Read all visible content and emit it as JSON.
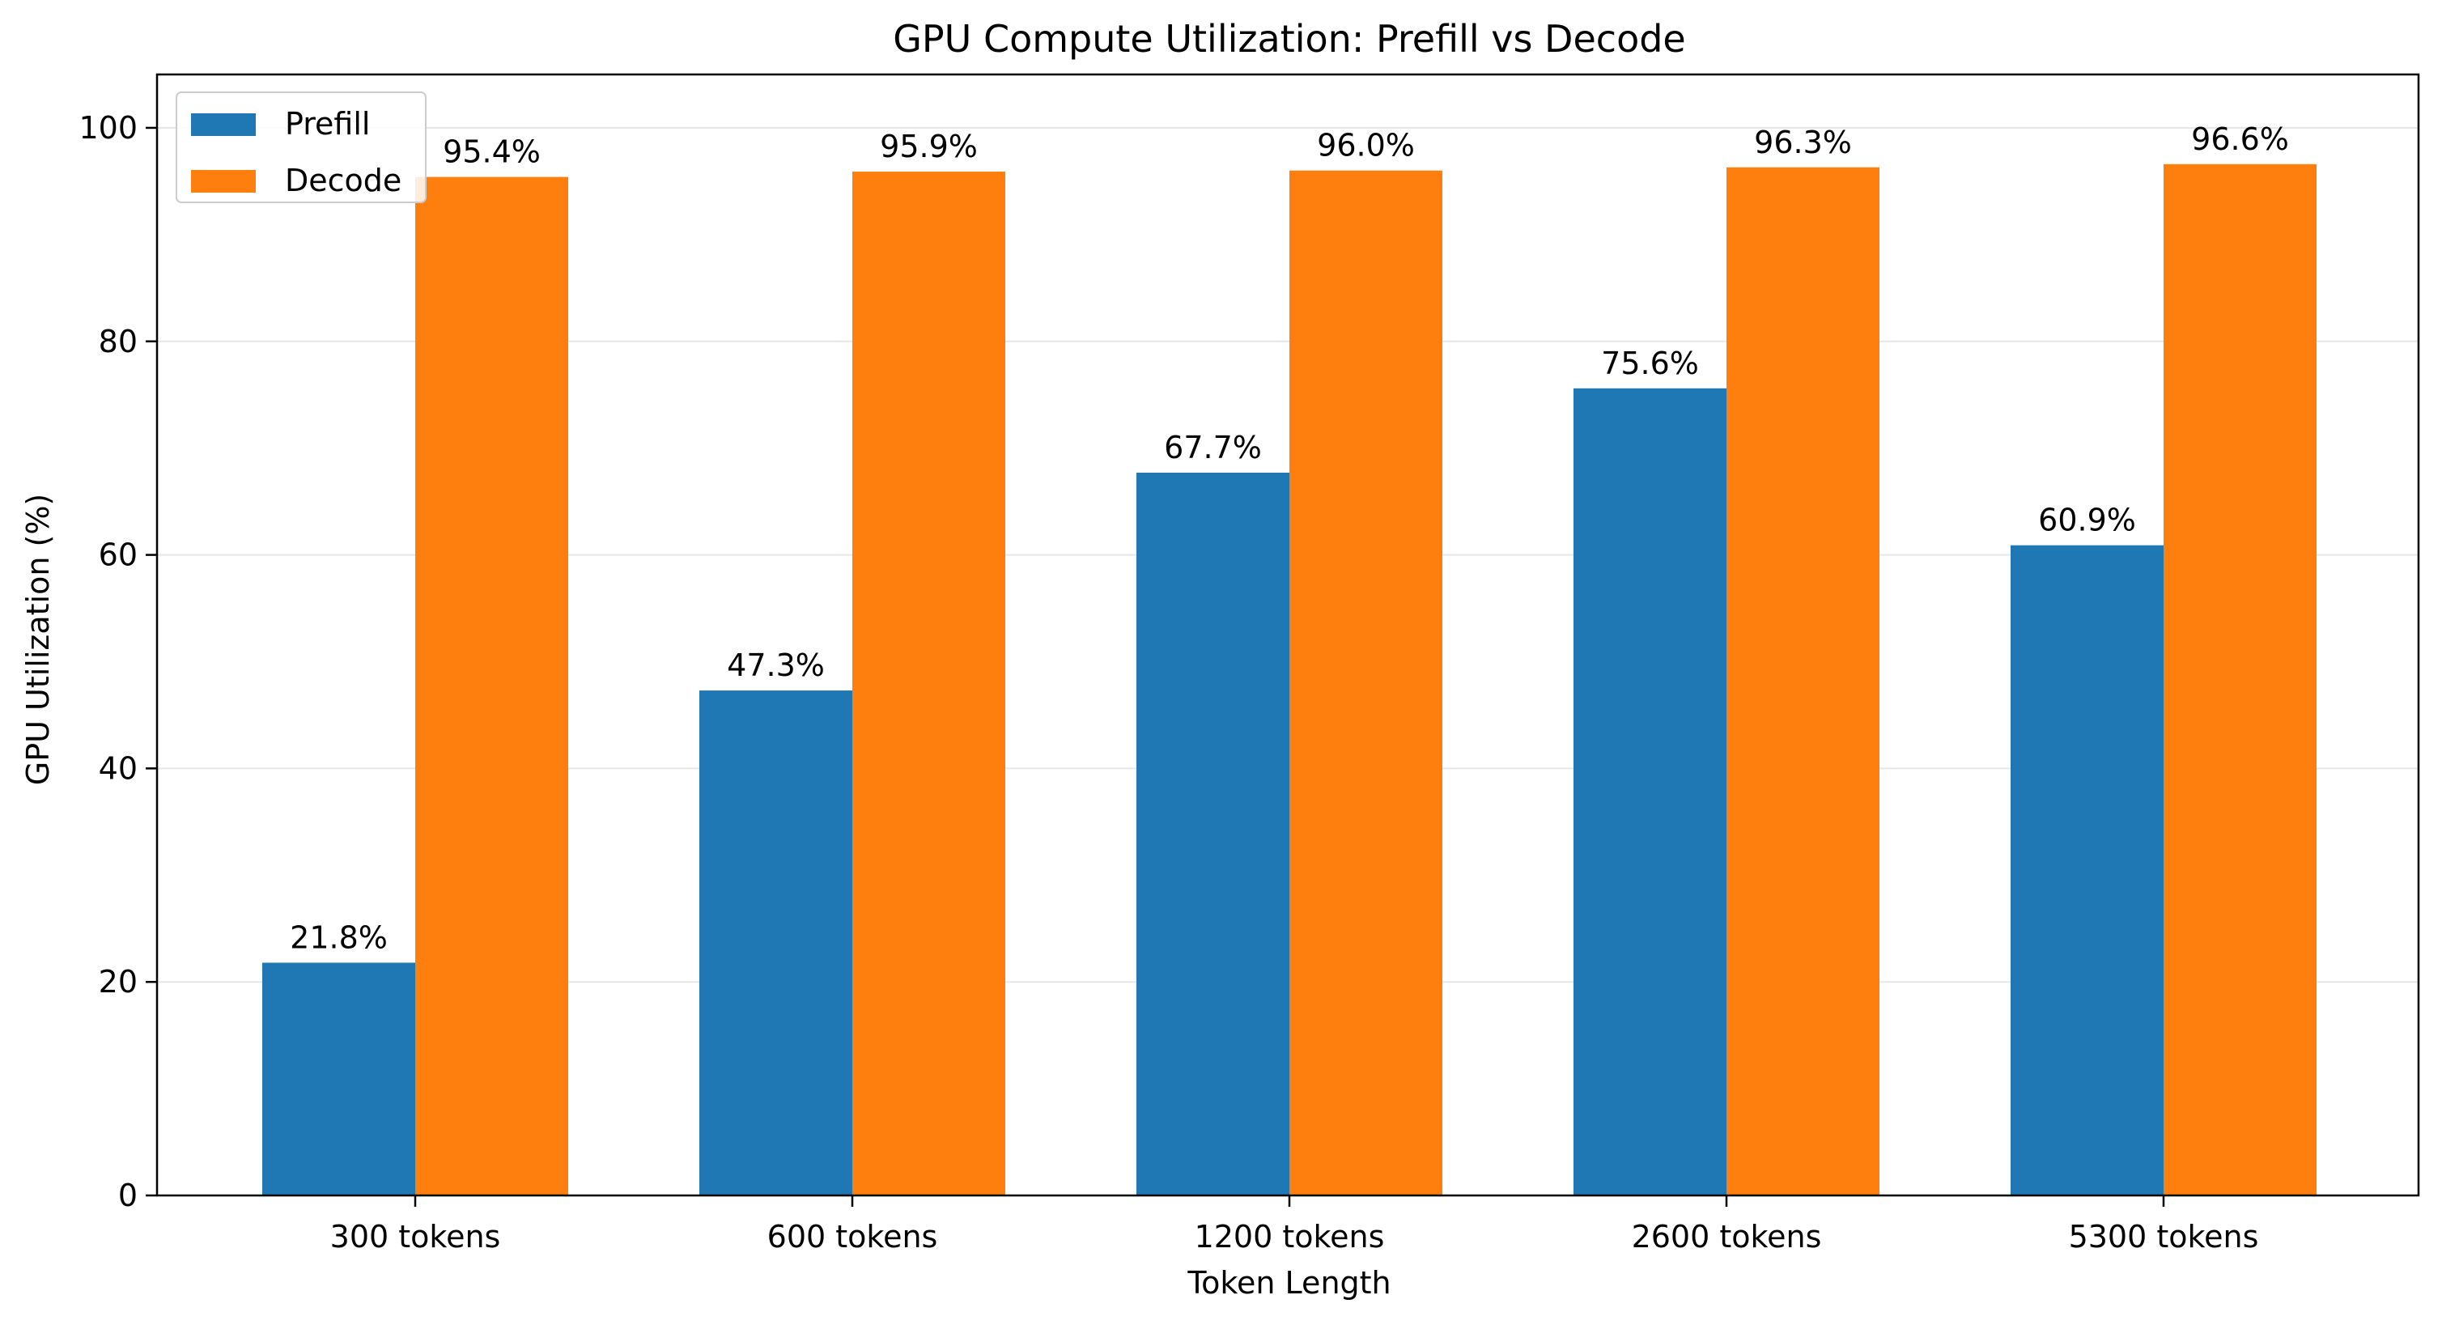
{
  "chart_data": {
    "type": "bar",
    "title": "GPU Compute Utilization: Prefill vs Decode",
    "xlabel": "Token Length",
    "ylabel": "GPU Utilization (%)",
    "categories": [
      "300 tokens",
      "600 tokens",
      "1200 tokens",
      "2600 tokens",
      "5300 tokens"
    ],
    "series": [
      {
        "name": "Prefill",
        "color": "#1f77b4",
        "values": [
          21.8,
          47.3,
          67.7,
          75.6,
          60.9
        ],
        "labels": [
          "21.8%",
          "47.3%",
          "67.7%",
          "75.6%",
          "60.9%"
        ]
      },
      {
        "name": "Decode",
        "color": "#ff7f0e",
        "values": [
          95.4,
          95.9,
          96.0,
          96.3,
          96.6
        ],
        "labels": [
          "95.4%",
          "95.9%",
          "96.0%",
          "96.3%",
          "96.6%"
        ]
      }
    ],
    "ylim": [
      0,
      105
    ],
    "yticks": [
      0,
      20,
      40,
      60,
      80,
      100
    ],
    "ytick_labels": [
      "0",
      "20",
      "40",
      "60",
      "80",
      "100"
    ],
    "grid": "y",
    "legend": "top-left"
  }
}
